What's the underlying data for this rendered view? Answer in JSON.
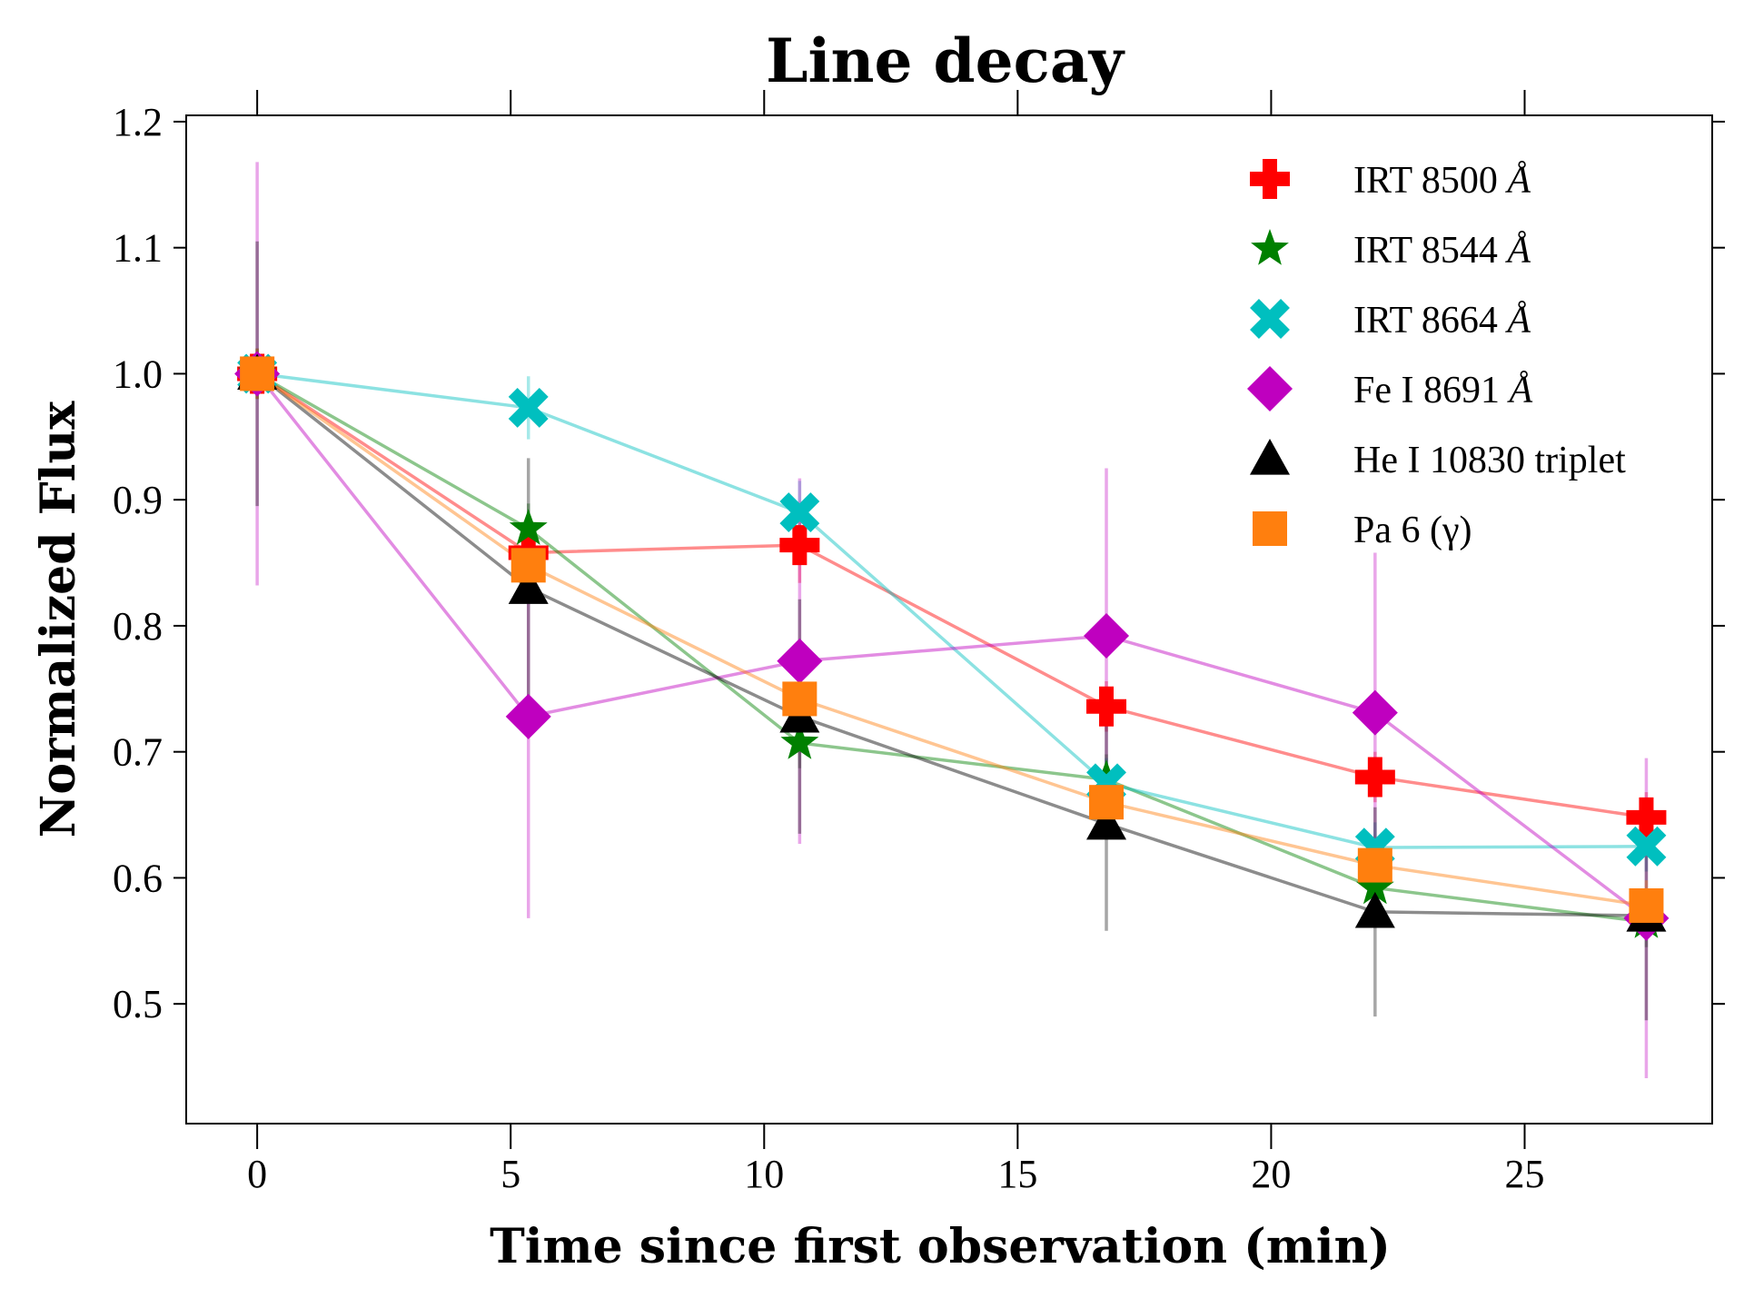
{
  "chart_data": {
    "type": "line",
    "title": "Line decay",
    "xlabel": "Time since first observation (min)",
    "ylabel": "Normalized Flux",
    "xlim": [
      -1.4,
      28.7
    ],
    "ylim": [
      0.405,
      1.205
    ],
    "xticks": [
      0,
      5,
      10,
      15,
      20,
      25
    ],
    "yticks": [
      0.5,
      0.6,
      0.7,
      0.8,
      0.9,
      1.0,
      1.1,
      1.2
    ],
    "xtick_labels": [
      "0",
      "5",
      "10",
      "15",
      "20",
      "25"
    ],
    "ytick_labels": [
      "0.5",
      "0.6",
      "0.7",
      "0.8",
      "0.9",
      "1.0",
      "1.1",
      "1.2"
    ],
    "legend_position": "top-right",
    "x": [
      0,
      5.35,
      10.7,
      16.75,
      22.05,
      27.4
    ],
    "series": [
      {
        "name": "IRT 8500 Å",
        "label_main": "IRT 8500",
        "label_unit": "Å",
        "color": "#ff0000",
        "marker": "plus",
        "values": [
          1.0,
          0.858,
          0.864,
          0.736,
          0.68,
          0.648
        ],
        "errors": [
          0.02,
          0.03,
          0.03,
          0.02,
          0.02,
          0.02
        ]
      },
      {
        "name": "IRT 8544 Å",
        "label_main": "IRT 8544",
        "label_unit": "Å",
        "color": "#008000",
        "marker": "star",
        "values": [
          1.0,
          0.877,
          0.707,
          0.678,
          0.592,
          0.565
        ],
        "errors": [
          0.02,
          0.02,
          0.02,
          0.02,
          0.02,
          0.02
        ]
      },
      {
        "name": "IRT 8664 Å",
        "label_main": "IRT 8664",
        "label_unit": "Å",
        "color": "#00bfbf",
        "marker": "x",
        "values": [
          1.0,
          0.973,
          0.89,
          0.675,
          0.624,
          0.625
        ],
        "errors": [
          0.02,
          0.025,
          0.025,
          0.02,
          0.02,
          0.02
        ]
      },
      {
        "name": "Fe I 8691 Å",
        "label_main": "Fe I 8691",
        "label_unit": "Å",
        "color": "#bf00bf",
        "marker": "diamond",
        "values": [
          1.0,
          0.728,
          0.772,
          0.792,
          0.731,
          0.568
        ],
        "errors": [
          0.168,
          0.16,
          0.145,
          0.133,
          0.127,
          0.127
        ]
      },
      {
        "name": "He I 10830 triplet",
        "label_main": "He I 10830 triplet",
        "label_unit": "",
        "color": "#000000",
        "marker": "triangle",
        "values": [
          1.0,
          0.83,
          0.728,
          0.643,
          0.573,
          0.57
        ],
        "errors": [
          0.105,
          0.103,
          0.093,
          0.085,
          0.083,
          0.083
        ]
      },
      {
        "name": "Pa 6 (γ)",
        "label_main": "Pa 6 (γ)",
        "label_unit": "",
        "color": "#ff7f0e",
        "marker": "square",
        "values": [
          1.0,
          0.848,
          0.742,
          0.66,
          0.61,
          0.578
        ],
        "errors": [
          0.02,
          0.02,
          0.02,
          0.02,
          0.02,
          0.02
        ]
      }
    ]
  }
}
